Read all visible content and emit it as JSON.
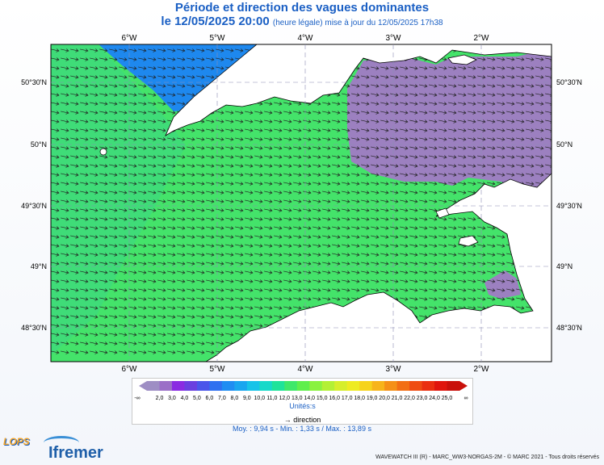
{
  "title": "Période et direction des vagues dominantes",
  "subtitle_main": "le 12/05/2025 20:00",
  "subtitle_note": "(heure légale) mise à jour du 12/05/2025 17h38",
  "lon_labels": [
    "6°W",
    "5°W",
    "4°W",
    "3°W",
    "2°W"
  ],
  "lat_labels": [
    "50°30'N",
    "50°N",
    "49°30'N",
    "49°N",
    "48°30'N"
  ],
  "legend": {
    "ticks": [
      "2,0",
      "3,0",
      "4,0",
      "5,0",
      "6,0",
      "7,0",
      "8,0",
      "9,0",
      "10,0",
      "11,0",
      "12,0",
      "13,0",
      "14,0",
      "15,0",
      "16,0",
      "17,0",
      "18,0",
      "19,0",
      "20,0",
      "21,0",
      "22,0",
      "23,0",
      "24,0",
      "25,0"
    ],
    "low_symbol": "-∞",
    "high_symbol": "∞",
    "colors": [
      "#9e8ec4",
      "#9b6fc7",
      "#8a2be2",
      "#6a3fe0",
      "#4a55ea",
      "#2f70f0",
      "#1f8df2",
      "#19a6ef",
      "#17c3e8",
      "#17d9c9",
      "#1fe39a",
      "#3fe86a",
      "#5fef4c",
      "#8af23f",
      "#b3f035",
      "#d6ee2c",
      "#eeeb22",
      "#f6d31c",
      "#f7b41a",
      "#f59017",
      "#f26e14",
      "#ef4c12",
      "#ea2f10",
      "#e0150d",
      "#c9100b"
    ],
    "unit": "Unités:s",
    "direction_label": "direction",
    "direction_symbol": "→"
  },
  "stats": "Moy. : 9,94 s   -   Min. : 1,33 s / Max. : 13,89 s",
  "footer": "WAVEWATCH III (R) - MARC_WW3-NORGAS-2M - © MARC 2021 - Tous droits réservés",
  "logos": {
    "lops": "LOPS",
    "ifremer": "Ifremer"
  },
  "map_colors": {
    "green": "#44e36a",
    "lightgreen": "#4ee55c",
    "blue": "#1e88ee",
    "purple": "#9c80c0",
    "land": "#ffffff",
    "coast": "#000000",
    "grid": "#7a7aa0"
  }
}
